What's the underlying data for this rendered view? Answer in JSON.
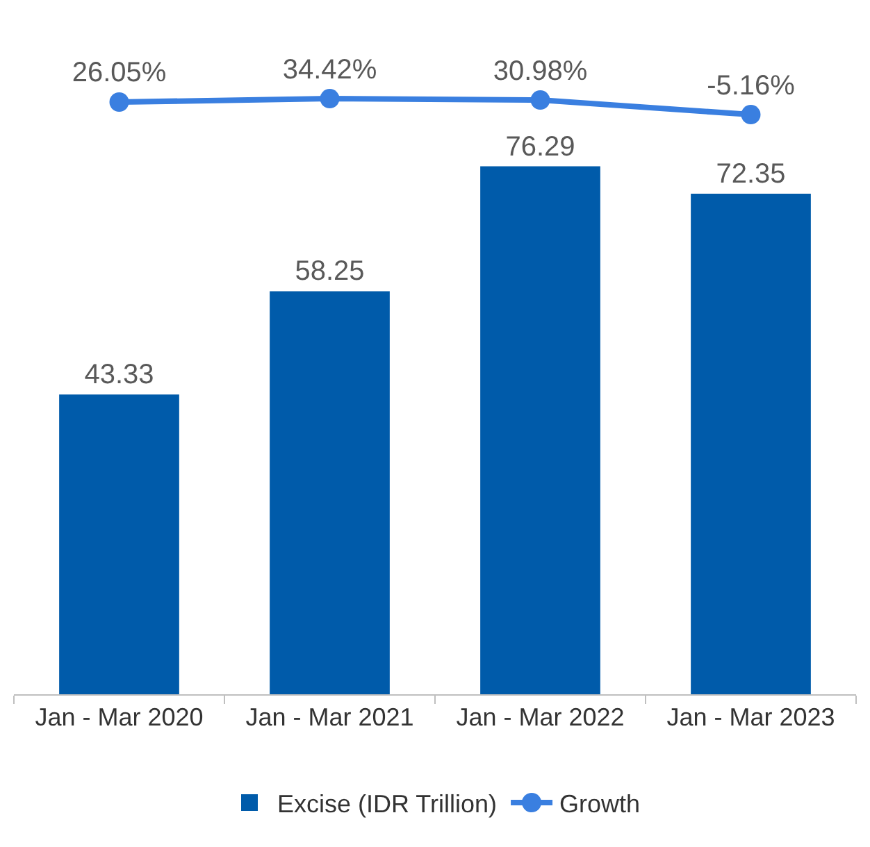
{
  "chart_data": [
    {
      "type": "line",
      "categories": [
        "Jan - Mar 2020",
        "Jan - Mar 2021",
        "Jan - Mar 2022",
        "Jan - Mar 2023"
      ],
      "series": [
        {
          "name": "Growth",
          "color": "#3a7fe0",
          "values": [
            26.05,
            34.42,
            30.98,
            -5.16
          ],
          "value_labels": [
            "26.05%",
            "34.42%",
            "30.98%",
            "-5.16%"
          ]
        }
      ],
      "marker": "circle",
      "tick_labels": false,
      "legend": "bottom"
    },
    {
      "type": "bar",
      "categories": [
        "Jan - Mar 2020",
        "Jan - Mar 2021",
        "Jan - Mar 2022",
        "Jan - Mar 2023"
      ],
      "series": [
        {
          "name": "Excise (IDR Trillion)",
          "color": "#005baa",
          "values": [
            43.33,
            58.25,
            76.29,
            72.35
          ]
        }
      ],
      "data_labels": true,
      "tick_labels": "x",
      "legend": "bottom"
    }
  ]
}
